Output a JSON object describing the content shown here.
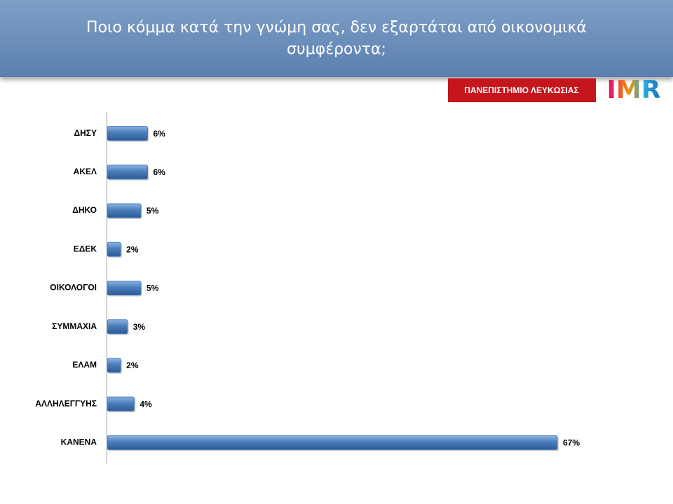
{
  "chart_data": {
    "type": "bar",
    "orientation": "horizontal",
    "title": "Ποιο κόμμα κατά την γνώμη σας, δεν εξαρτάται από οικονομικά συμφέροντα;",
    "categories": [
      "ΔΗΣΥ",
      "ΑΚΕΛ",
      "ΔΗΚΟ",
      "ΕΔΕΚ",
      "ΟΙΚΟΛΟΓΟΙ",
      "ΣΥΜΜΑΧΙΑ",
      "ΕΛΑΜ",
      "ΑΛΛΗΛΕΓΓΥΗΣ",
      "ΚΑΝΕΝΑ"
    ],
    "values": [
      6,
      6,
      5,
      2,
      5,
      3,
      2,
      4,
      67
    ],
    "value_labels": [
      "6%",
      "6%",
      "5%",
      "2%",
      "5%",
      "3%",
      "2%",
      "4%",
      "67%"
    ],
    "color": "#4a7ebb"
  },
  "logos": {
    "university": "ΠΑΝΕΠΙΣΤΗΜΙΟ ΛΕΥΚΩΣΙΑΣ",
    "imr": "IMR"
  }
}
